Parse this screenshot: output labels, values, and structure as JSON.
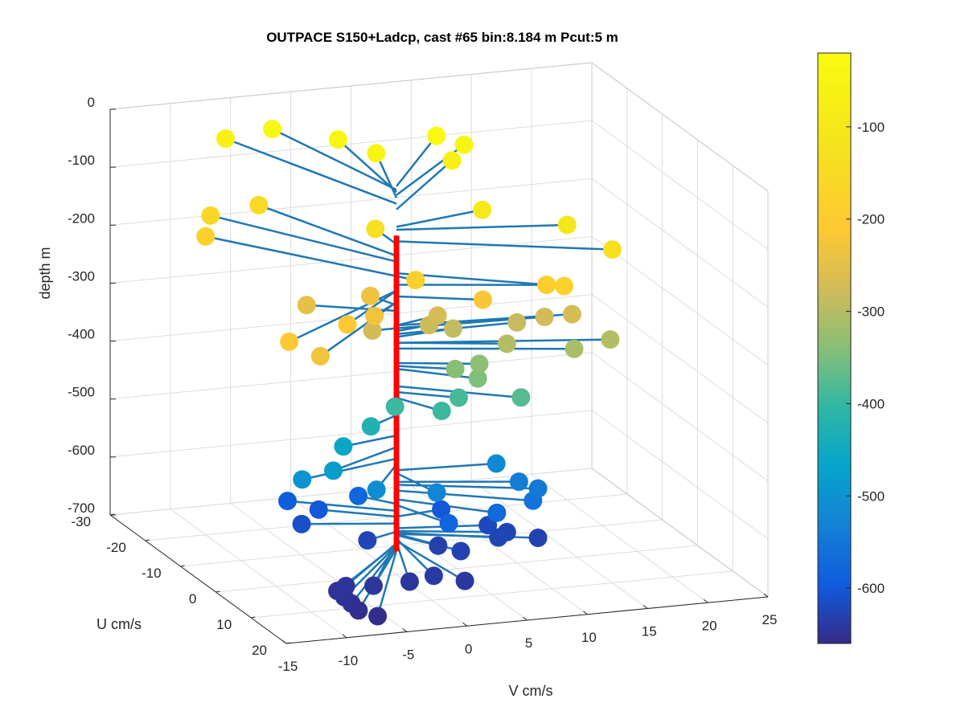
{
  "chart_data": {
    "type": "scatter",
    "plot_kind": "3d-quiver-profile",
    "title": "OUTPACE S150+Ladcp, cast #65 bin:8.184 m  Pcut:5 m",
    "xlabel": "V cm/s",
    "ylabel": "U cm/s",
    "zlabel": "depth m",
    "xlim": [
      -15,
      25
    ],
    "ylim": [
      -30,
      20
    ],
    "zlim": [
      -700,
      0
    ],
    "x_ticks": [
      "-15",
      "-10",
      "-5",
      "0",
      "5",
      "10",
      "15",
      "20",
      "25"
    ],
    "y_ticks": [
      "-30",
      "-20",
      "-10",
      "0",
      "10",
      "20"
    ],
    "z_ticks": [
      "0",
      "-100",
      "-200",
      "-300",
      "-400",
      "-500",
      "-600",
      "-700"
    ],
    "colorbar": {
      "colormap": "parula",
      "range": [
        -660,
        -20
      ],
      "ticks": [
        "-100",
        "-200",
        "-300",
        "-400",
        "-500",
        "-600"
      ],
      "label": ""
    },
    "stem": {
      "color": "#ff0000",
      "depth_range": [
        -660,
        -115
      ]
    },
    "line_color": "#1f77b4",
    "grid": true,
    "points": [
      {
        "v": -3,
        "u": -25,
        "depth": -36
      },
      {
        "v": 8,
        "u": -16,
        "depth": -30
      },
      {
        "v": 10,
        "u": -15,
        "depth": -45
      },
      {
        "v": 3,
        "u": -16,
        "depth": -50
      },
      {
        "v": 1,
        "u": -20,
        "depth": -40
      },
      {
        "v": 9,
        "u": -15,
        "depth": -70
      },
      {
        "v": -6,
        "u": -28,
        "depth": -60
      },
      {
        "v": 8,
        "u": -3,
        "depth": -100
      },
      {
        "v": 13,
        "u": 4,
        "depth": -105
      },
      {
        "v": 15,
        "u": 10,
        "depth": -125
      },
      {
        "v": 0,
        "u": -6,
        "depth": -130
      },
      {
        "v": -5,
        "u": -22,
        "depth": -150
      },
      {
        "v": -9,
        "u": -22,
        "depth": -160
      },
      {
        "v": -10,
        "u": -20,
        "depth": -185
      },
      {
        "v": 11,
        "u": 10,
        "depth": -180
      },
      {
        "v": 1,
        "u": 2,
        "depth": -185
      },
      {
        "v": -7,
        "u": 10,
        "depth": -210
      },
      {
        "v": -13,
        "u": 14,
        "depth": -210
      },
      {
        "v": -11,
        "u": 16,
        "depth": -230
      },
      {
        "v": 11,
        "u": 5,
        "depth": -200
      },
      {
        "v": 6,
        "u": 4,
        "depth": -220
      },
      {
        "v": -3,
        "u": 4,
        "depth": -230
      },
      {
        "v": -1,
        "u": -4,
        "depth": -235
      },
      {
        "v": -6,
        "u": -5,
        "depth": -245
      },
      {
        "v": -2,
        "u": 0,
        "depth": -275
      },
      {
        "v": 4,
        "u": -2,
        "depth": -270
      },
      {
        "v": 3,
        "u": -1,
        "depth": -280
      },
      {
        "v": 14,
        "u": 2,
        "depth": -270
      },
      {
        "v": 12,
        "u": 1,
        "depth": -275
      },
      {
        "v": 10,
        "u": 0,
        "depth": -285
      },
      {
        "v": 5,
        "u": -1,
        "depth": -290
      },
      {
        "v": 8,
        "u": 4,
        "depth": -300
      },
      {
        "v": 16,
        "u": 6,
        "depth": -300
      },
      {
        "v": 13,
        "u": 6,
        "depth": -310
      },
      {
        "v": 6,
        "u": 3,
        "depth": -335
      },
      {
        "v": 4,
        "u": 3,
        "depth": -340
      },
      {
        "v": 5,
        "u": 6,
        "depth": -345
      },
      {
        "v": 8,
        "u": 8,
        "depth": -375
      },
      {
        "v": 4,
        "u": 4,
        "depth": -385
      },
      {
        "v": 2,
        "u": 6,
        "depth": -395
      },
      {
        "v": -1,
        "u": 3,
        "depth": -395
      },
      {
        "v": -3,
        "u": 3,
        "depth": -425
      },
      {
        "v": -5,
        "u": 2,
        "depth": -460
      },
      {
        "v": -7,
        "u": 6,
        "depth": -480
      },
      {
        "v": -9,
        "u": 4,
        "depth": -500
      },
      {
        "v": -4,
        "u": 8,
        "depth": -510
      },
      {
        "v": 1,
        "u": 8,
        "depth": -525
      },
      {
        "v": 8,
        "u": 1,
        "depth": -520
      },
      {
        "v": 9,
        "u": 4,
        "depth": -540
      },
      {
        "v": 10,
        "u": 6,
        "depth": -545
      },
      {
        "v": 9,
        "u": 8,
        "depth": -555
      },
      {
        "v": 6,
        "u": 8,
        "depth": -570
      },
      {
        "v": 2,
        "u": 8,
        "depth": -580
      },
      {
        "v": -2,
        "u": -4,
        "depth": -578
      },
      {
        "v": -7,
        "u": -7,
        "depth": -590
      },
      {
        "v": -5,
        "u": -5,
        "depth": -600
      },
      {
        "v": -7,
        "u": -3,
        "depth": -612
      },
      {
        "v": -3,
        "u": 2,
        "depth": -626
      },
      {
        "v": 4,
        "u": -1,
        "depth": -600
      },
      {
        "v": 7,
        "u": 2,
        "depth": -620
      },
      {
        "v": 8,
        "u": 4,
        "depth": -625
      },
      {
        "v": 7,
        "u": 5,
        "depth": -628
      },
      {
        "v": 10,
        "u": 6,
        "depth": -630
      },
      {
        "v": 3,
        "u": 8,
        "depth": -630
      },
      {
        "v": 2,
        "u": 5,
        "depth": -632
      },
      {
        "v": -1,
        "u": 14,
        "depth": -638
      },
      {
        "v": 1,
        "u": 16,
        "depth": -642
      },
      {
        "v": -3,
        "u": 14,
        "depth": -644
      },
      {
        "v": -6,
        "u": 14,
        "depth": -645
      },
      {
        "v": -8,
        "u": 13,
        "depth": -646
      },
      {
        "v": -9,
        "u": 14,
        "depth": -648
      },
      {
        "v": -9,
        "u": 16,
        "depth": -650
      },
      {
        "v": -9,
        "u": 18,
        "depth": -652
      },
      {
        "v": -9,
        "u": 20,
        "depth": -655
      },
      {
        "v": -8,
        "u": 22,
        "depth": -658
      }
    ]
  }
}
